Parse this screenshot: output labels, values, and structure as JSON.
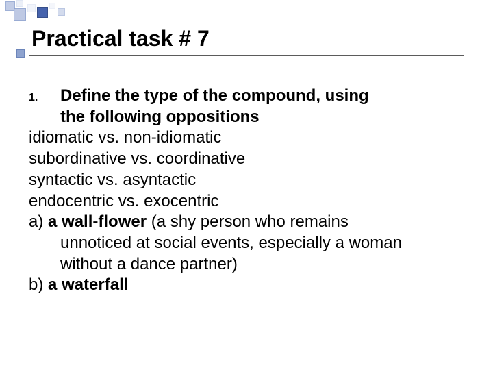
{
  "title": "Practical task # 7",
  "list_number": "1.",
  "instruction_line1": "Define the type of the compound, using",
  "instruction_line2": "the following oppositions",
  "oppositions": {
    "o1": "idiomatic vs. non-idiomatic",
    "o2": "subordinative vs. coordinative",
    "o3": "syntactic vs. asyntactic",
    "o4": "endocentric vs. exocentric"
  },
  "items": {
    "a_label": "a) ",
    "a_term": "a wall-flower",
    "a_def_open": " (a shy person who remains",
    "a_def_line2": "unnoticed at social events, especially a woman",
    "a_def_line3": "without a dance partner)",
    "b_label": "b) ",
    "b_term": "a waterfall"
  },
  "colors": {
    "text": "#000000",
    "underline": "#5b5b5b",
    "accent_light": "#b7c4e2",
    "accent_dark": "#3d5ba9",
    "background": "#ffffff"
  },
  "fonts": {
    "title_size_pt": 24,
    "body_size_pt": 18,
    "number_size_pt": 12,
    "weight_title": "bold",
    "weight_body": "normal"
  }
}
